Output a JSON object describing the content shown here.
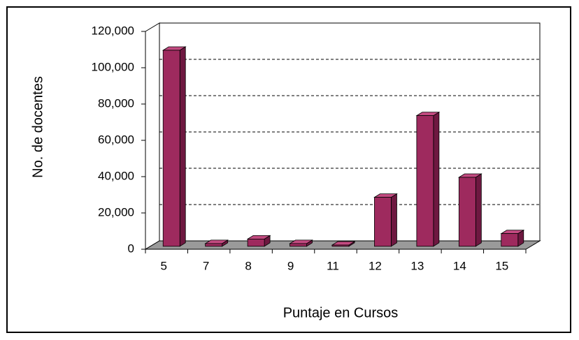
{
  "chart_data": {
    "type": "bar3d",
    "x_label": "Puntaje en Cursos",
    "y_label": "No. de docentes",
    "categories": [
      "5",
      "7",
      "8",
      "9",
      "11",
      "12",
      "13",
      "14",
      "15"
    ],
    "values": [
      108000,
      1500,
      4000,
      1500,
      700,
      27000,
      72000,
      38000,
      7000
    ],
    "color": "#9e2a5e",
    "ylim": [
      0,
      120000
    ],
    "yticks": [
      0,
      {
        "value": 20000,
        "label": "20,000"
      },
      {
        "value": 40000,
        "label": "40,000"
      },
      {
        "value": 60000,
        "label": "60,000"
      },
      {
        "value": 80000,
        "label": "80,000"
      },
      {
        "value": 100000,
        "label": "100,000"
      },
      {
        "value": 120000,
        "label": "120,000"
      }
    ],
    "grid": true
  }
}
